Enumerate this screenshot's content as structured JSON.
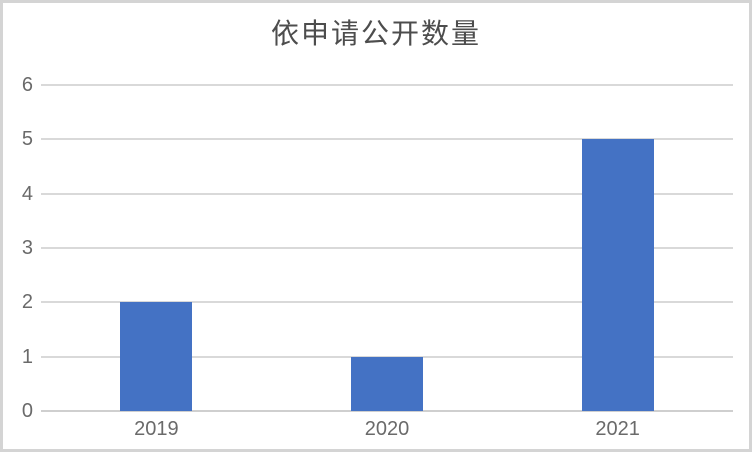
{
  "chart_data": {
    "type": "bar",
    "title": "依申请公开数量",
    "categories": [
      "2019",
      "2020",
      "2021"
    ],
    "values": [
      2,
      1,
      5
    ],
    "xlabel": "",
    "ylabel": "",
    "ylim": [
      0,
      6
    ],
    "ytick_labels": [
      "0",
      "1",
      "2",
      "3",
      "4",
      "5",
      "6"
    ],
    "grid": true,
    "legend": "none",
    "bar_color": "#4472c4",
    "gridline_color": "#d9d9d9",
    "zero_line_color": "#cfcfcf",
    "tick_label_color": "#6a6a6a",
    "title_color": "#4d4d4d",
    "frame_border_color": "#d4d4d4",
    "background_color": "#ffffff"
  }
}
